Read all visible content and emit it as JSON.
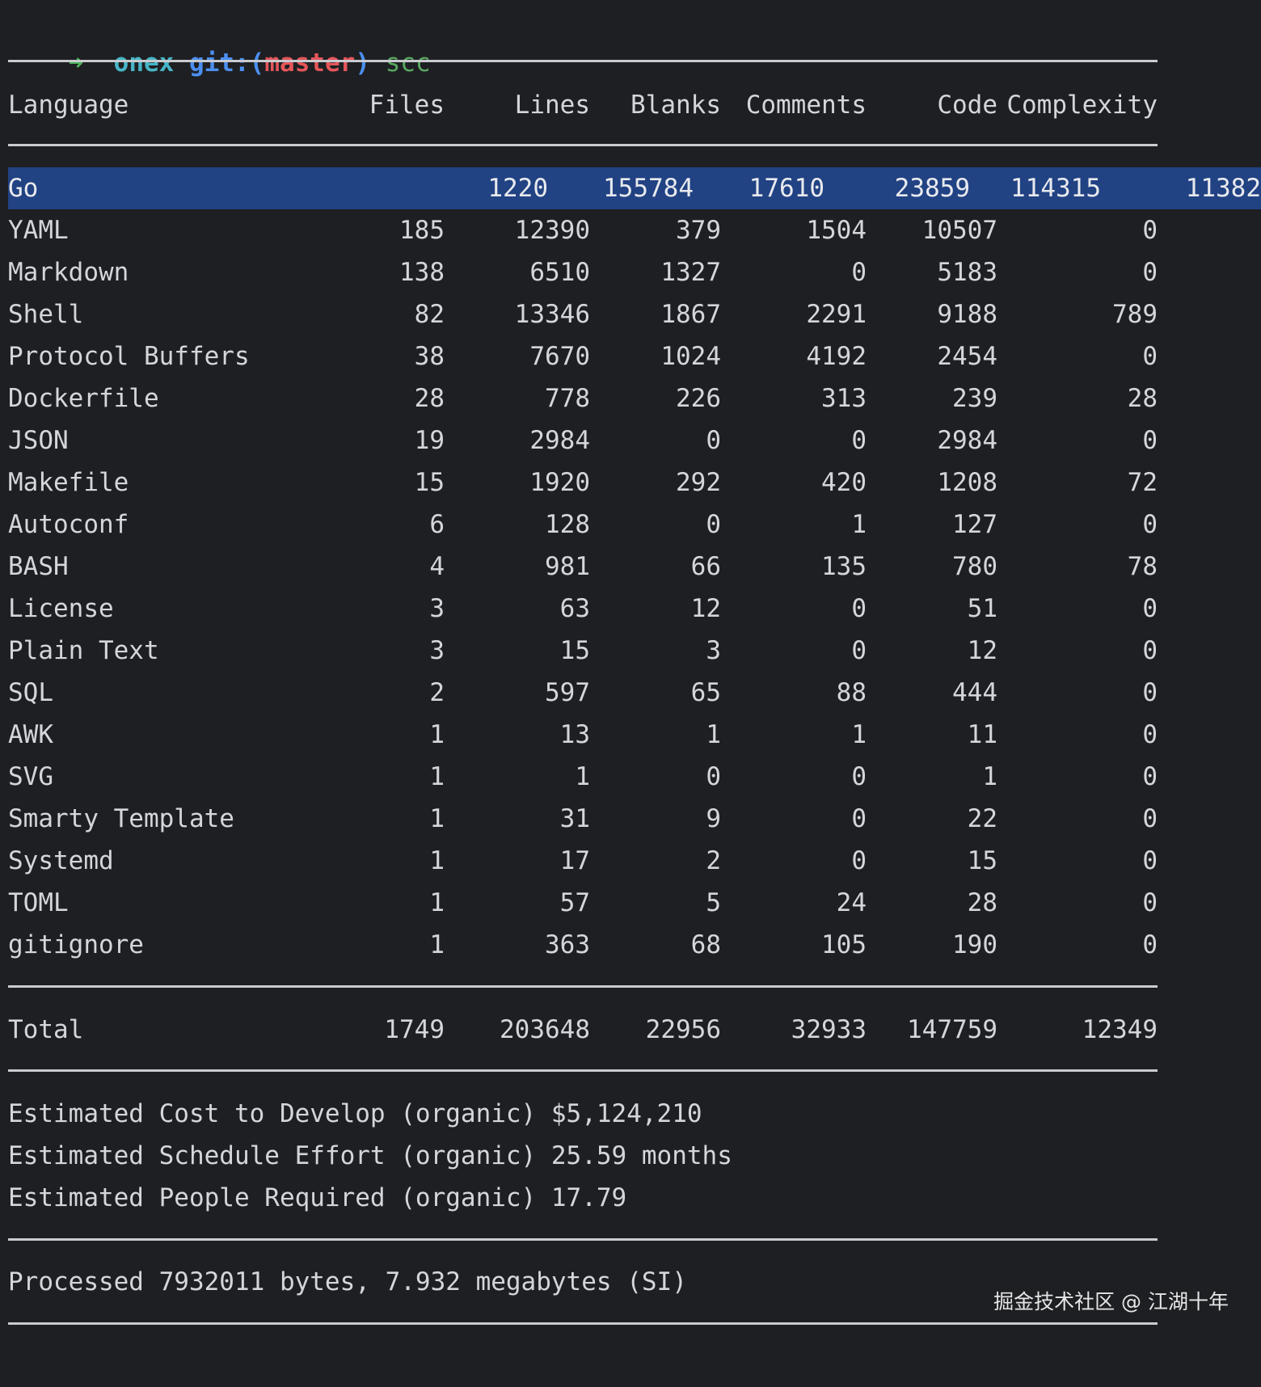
{
  "prompt": {
    "arrow": "➜",
    "repo": "onex",
    "git_prefix": "git:(",
    "branch": "master",
    "git_suffix": ")",
    "command": "scc"
  },
  "colors": {
    "background": "#1e1f22",
    "text": "#d4d6db",
    "highlight_row": "#214283",
    "prompt_arrow": "#4fb35b",
    "prompt_repo": "#46b5c7",
    "prompt_git": "#4b8ff0",
    "prompt_branch": "#e5565a",
    "prompt_command": "#58a85f"
  },
  "table": {
    "headers": {
      "language": "Language",
      "files": "Files",
      "lines": "Lines",
      "blanks": "Blanks",
      "comments": "Comments",
      "code": "Code",
      "complexity": "Complexity"
    },
    "rows": [
      {
        "language": "Go",
        "files": "1220",
        "lines": "155784",
        "blanks": "17610",
        "comments": "23859",
        "code": "114315",
        "complexity": "11382"
      },
      {
        "language": "YAML",
        "files": "185",
        "lines": "12390",
        "blanks": "379",
        "comments": "1504",
        "code": "10507",
        "complexity": "0"
      },
      {
        "language": "Markdown",
        "files": "138",
        "lines": "6510",
        "blanks": "1327",
        "comments": "0",
        "code": "5183",
        "complexity": "0"
      },
      {
        "language": "Shell",
        "files": "82",
        "lines": "13346",
        "blanks": "1867",
        "comments": "2291",
        "code": "9188",
        "complexity": "789"
      },
      {
        "language": "Protocol Buffers",
        "files": "38",
        "lines": "7670",
        "blanks": "1024",
        "comments": "4192",
        "code": "2454",
        "complexity": "0"
      },
      {
        "language": "Dockerfile",
        "files": "28",
        "lines": "778",
        "blanks": "226",
        "comments": "313",
        "code": "239",
        "complexity": "28"
      },
      {
        "language": "JSON",
        "files": "19",
        "lines": "2984",
        "blanks": "0",
        "comments": "0",
        "code": "2984",
        "complexity": "0"
      },
      {
        "language": "Makefile",
        "files": "15",
        "lines": "1920",
        "blanks": "292",
        "comments": "420",
        "code": "1208",
        "complexity": "72"
      },
      {
        "language": "Autoconf",
        "files": "6",
        "lines": "128",
        "blanks": "0",
        "comments": "1",
        "code": "127",
        "complexity": "0"
      },
      {
        "language": "BASH",
        "files": "4",
        "lines": "981",
        "blanks": "66",
        "comments": "135",
        "code": "780",
        "complexity": "78"
      },
      {
        "language": "License",
        "files": "3",
        "lines": "63",
        "blanks": "12",
        "comments": "0",
        "code": "51",
        "complexity": "0"
      },
      {
        "language": "Plain Text",
        "files": "3",
        "lines": "15",
        "blanks": "3",
        "comments": "0",
        "code": "12",
        "complexity": "0"
      },
      {
        "language": "SQL",
        "files": "2",
        "lines": "597",
        "blanks": "65",
        "comments": "88",
        "code": "444",
        "complexity": "0"
      },
      {
        "language": "AWK",
        "files": "1",
        "lines": "13",
        "blanks": "1",
        "comments": "1",
        "code": "11",
        "complexity": "0"
      },
      {
        "language": "SVG",
        "files": "1",
        "lines": "1",
        "blanks": "0",
        "comments": "0",
        "code": "1",
        "complexity": "0"
      },
      {
        "language": "Smarty Template",
        "files": "1",
        "lines": "31",
        "blanks": "9",
        "comments": "0",
        "code": "22",
        "complexity": "0"
      },
      {
        "language": "Systemd",
        "files": "1",
        "lines": "17",
        "blanks": "2",
        "comments": "0",
        "code": "15",
        "complexity": "0"
      },
      {
        "language": "TOML",
        "files": "1",
        "lines": "57",
        "blanks": "5",
        "comments": "24",
        "code": "28",
        "complexity": "0"
      },
      {
        "language": "gitignore",
        "files": "1",
        "lines": "363",
        "blanks": "68",
        "comments": "105",
        "code": "190",
        "complexity": "0"
      }
    ],
    "total": {
      "language": "Total",
      "files": "1749",
      "lines": "203648",
      "blanks": "22956",
      "comments": "32933",
      "code": "147759",
      "complexity": "12349"
    }
  },
  "estimates": {
    "cost": "Estimated Cost to Develop (organic) $5,124,210",
    "schedule": "Estimated Schedule Effort (organic) 25.59 months",
    "people": "Estimated People Required (organic) 17.79"
  },
  "processed": "Processed 7932011 bytes, 7.932 megabytes (SI)",
  "watermark": "掘金技术社区 @ 江湖十年"
}
